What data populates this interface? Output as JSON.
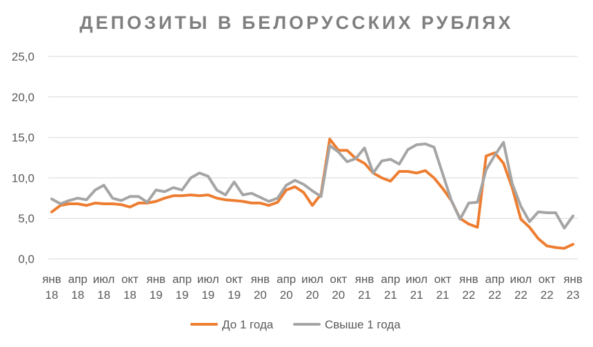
{
  "colors": {
    "series1": "#ED7D31",
    "series2": "#A5A5A5",
    "grid": "#D9D9D9",
    "text": "#595959",
    "title": "#7F7F7F"
  },
  "chart_data": {
    "type": "line",
    "title": "ДЕПОЗИТЫ В БЕЛОРУССКИХ РУБЛЯХ",
    "xlabel": "",
    "ylabel": "",
    "ylim": [
      0,
      25
    ],
    "y_ticks": [
      "0,0",
      "5,0",
      "10,0",
      "15,0",
      "20,0",
      "25,0"
    ],
    "grid": true,
    "legend_position": "bottom",
    "x_tick_labels": [
      {
        "index": 0,
        "month": "янв",
        "year": "18"
      },
      {
        "index": 3,
        "month": "апр",
        "year": "18"
      },
      {
        "index": 6,
        "month": "июл",
        "year": "18"
      },
      {
        "index": 9,
        "month": "окт",
        "year": "18"
      },
      {
        "index": 12,
        "month": "янв",
        "year": "19"
      },
      {
        "index": 15,
        "month": "апр",
        "year": "19"
      },
      {
        "index": 18,
        "month": "июл",
        "year": "19"
      },
      {
        "index": 21,
        "month": "окт",
        "year": "19"
      },
      {
        "index": 24,
        "month": "янв",
        "year": "20"
      },
      {
        "index": 27,
        "month": "апр",
        "year": "20"
      },
      {
        "index": 30,
        "month": "июл",
        "year": "20"
      },
      {
        "index": 33,
        "month": "окт",
        "year": "20"
      },
      {
        "index": 36,
        "month": "янв",
        "year": "21"
      },
      {
        "index": 39,
        "month": "апр",
        "year": "21"
      },
      {
        "index": 42,
        "month": "июл",
        "year": "21"
      },
      {
        "index": 45,
        "month": "окт",
        "year": "21"
      },
      {
        "index": 48,
        "month": "янв",
        "year": "22"
      },
      {
        "index": 51,
        "month": "апр",
        "year": "22"
      },
      {
        "index": 54,
        "month": "июл",
        "year": "22"
      },
      {
        "index": 57,
        "month": "окт",
        "year": "22"
      },
      {
        "index": 60,
        "month": "янв",
        "year": "23"
      }
    ],
    "series": [
      {
        "name": "До 1 года",
        "values": [
          5.8,
          6.6,
          6.8,
          6.8,
          6.6,
          6.9,
          6.8,
          6.8,
          6.7,
          6.4,
          6.9,
          6.9,
          7.1,
          7.5,
          7.8,
          7.8,
          7.9,
          7.8,
          7.9,
          7.5,
          7.3,
          7.2,
          7.1,
          6.9,
          6.9,
          6.6,
          7.0,
          8.5,
          8.9,
          8.2,
          6.6,
          8.0,
          14.8,
          13.4,
          13.4,
          12.4,
          11.8,
          10.6,
          10.0,
          9.6,
          10.8,
          10.8,
          10.6,
          10.9,
          10.0,
          8.7,
          7.2,
          5.0,
          4.3,
          3.9,
          12.7,
          13.1,
          11.8,
          8.8,
          4.9,
          3.9,
          2.5,
          1.6,
          1.4,
          1.3,
          1.8
        ]
      },
      {
        "name": "Свыше 1 года",
        "values": [
          7.4,
          6.8,
          7.2,
          7.5,
          7.3,
          8.5,
          9.1,
          7.5,
          7.2,
          7.7,
          7.7,
          7.0,
          8.5,
          8.3,
          8.8,
          8.5,
          10.0,
          10.6,
          10.2,
          8.5,
          7.9,
          9.5,
          7.9,
          8.1,
          7.6,
          7.1,
          7.5,
          9.1,
          9.7,
          9.2,
          8.4,
          7.7,
          14.0,
          13.2,
          12.0,
          12.4,
          13.7,
          10.6,
          12.1,
          12.3,
          11.7,
          13.5,
          14.1,
          14.2,
          13.8,
          10.5,
          7.2,
          4.9,
          6.9,
          7.0,
          11.0,
          12.8,
          14.4,
          9.3,
          6.5,
          4.6,
          5.8,
          5.7,
          5.7,
          3.8,
          5.3
        ]
      }
    ]
  }
}
